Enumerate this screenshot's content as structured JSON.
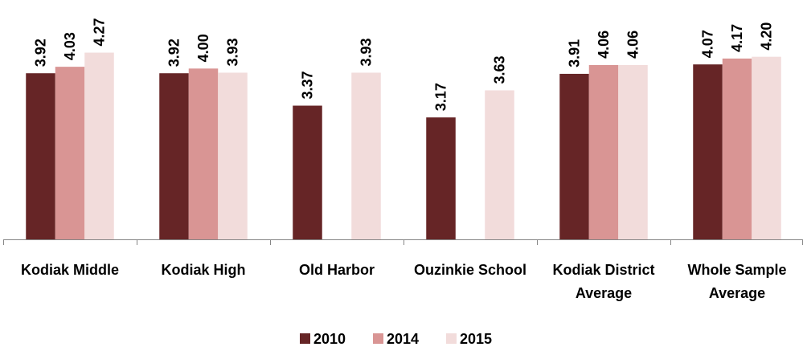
{
  "chart_data": {
    "type": "bar",
    "categories": [
      "Kodiak Middle",
      "Kodiak High",
      "Old Harbor",
      "Ouzinkie School",
      "Kodiak District Average",
      "Whole Sample Average"
    ],
    "series": [
      {
        "name": "2010",
        "color": "#662526",
        "values": [
          3.92,
          3.92,
          3.37,
          3.17,
          3.91,
          4.07
        ]
      },
      {
        "name": "2014",
        "color": "#d99594",
        "values": [
          4.03,
          4.0,
          null,
          null,
          4.06,
          4.17
        ]
      },
      {
        "name": "2015",
        "color": "#f2dcdb",
        "values": [
          4.27,
          3.93,
          3.93,
          3.63,
          4.06,
          4.2
        ],
        "value_labels": [
          "4.27",
          "3.93",
          "3.93",
          "3.63",
          "4.06",
          "4.20"
        ]
      }
    ],
    "value_labels": [
      [
        "3.92",
        "3.92",
        "3.37",
        "3.17",
        "3.91",
        "4.07"
      ],
      [
        "4.03",
        "4.00",
        null,
        null,
        "4.06",
        "4.17"
      ],
      [
        "4.27",
        "3.93",
        "3.93",
        "3.63",
        "4.06",
        "4.20"
      ]
    ],
    "ylim": [
      1.1,
      5
    ],
    "legend": "bottom"
  }
}
